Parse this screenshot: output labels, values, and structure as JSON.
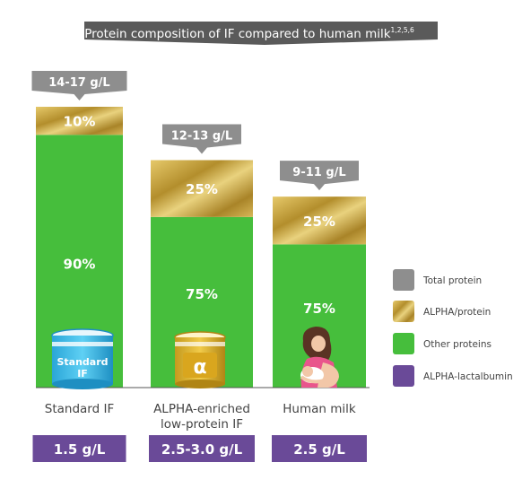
{
  "chart_data": {
    "type": "bar",
    "title": "Protein composition of IF compared to human milk",
    "title_sup": "1,2,5,6",
    "categories": [
      "Standard IF",
      "ALPHA-enriched low-protein IF",
      "Human milk"
    ],
    "category_lines": [
      [
        "Standard IF"
      ],
      [
        "ALPHA-enriched",
        "low-protein IF"
      ],
      [
        "Human milk"
      ]
    ],
    "total_protein_labels": [
      "14-17 g/L",
      "12-13 g/L",
      "9-11 g/L"
    ],
    "relative_height": [
      1.0,
      0.81,
      0.68
    ],
    "series": [
      {
        "name": "ALPHA/protein",
        "values": [
          10,
          25,
          25
        ],
        "labels": [
          "10%",
          "25%",
          "25%"
        ],
        "color": "#C9A83A"
      },
      {
        "name": "Other proteins",
        "values": [
          90,
          75,
          75
        ],
        "labels": [
          "90%",
          "75%",
          "75%"
        ],
        "color": "#46BE3C"
      }
    ],
    "alpha_lactalbumin_labels": [
      "1.5 g/L",
      "2.5-3.0 g/L",
      "2.5 g/L"
    ],
    "legend_position": "right",
    "legend": [
      {
        "label": "Total protein",
        "color": "#8E8E8E"
      },
      {
        "label": "ALPHA/protein",
        "color": "#C9A83A"
      },
      {
        "label": "Other proteins",
        "color": "#46BE3C"
      },
      {
        "label": "ALPHA-lactalbumin",
        "color": "#6A4A98"
      }
    ]
  },
  "illustrations": {
    "standard_can": [
      "Standard",
      "IF"
    ],
    "alpha_can": "α"
  },
  "colors": {
    "title_bg": "#5A5A5A",
    "callout_bg": "#8E8E8E",
    "gold_light": "#E3C766",
    "gold_dark": "#A07E22",
    "green": "#46BE3C",
    "purple": "#6A4A98"
  }
}
